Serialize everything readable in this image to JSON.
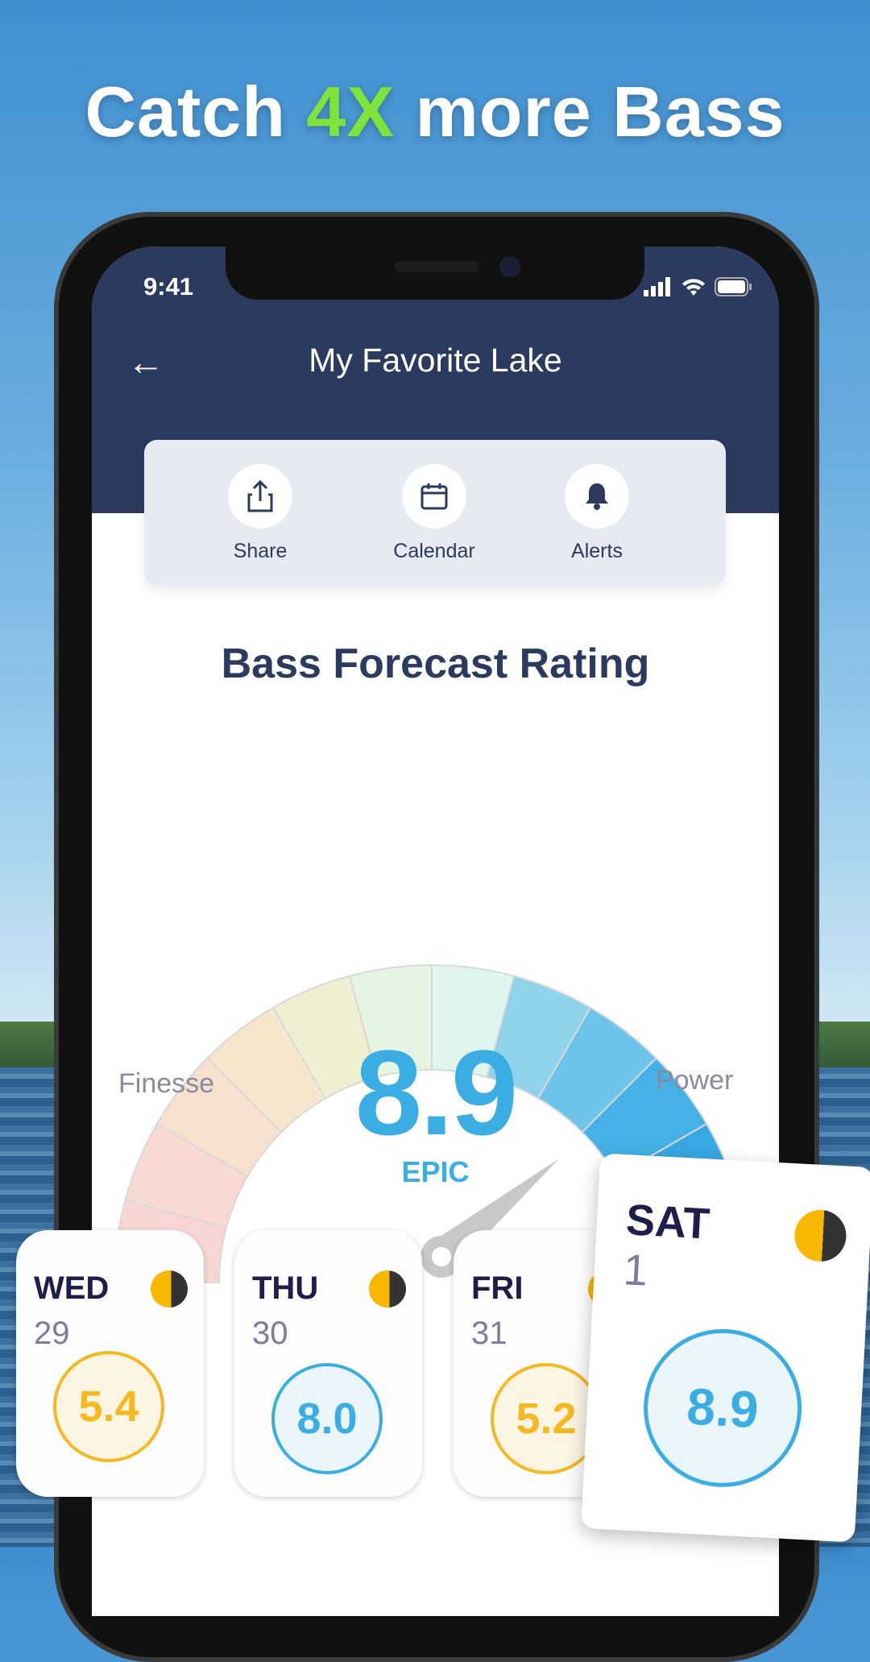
{
  "headline": {
    "pre": "Catch ",
    "accent": "4X",
    "post": " more Bass",
    "accent_color": "#7ee43a"
  },
  "status_bar": {
    "time": "9:41",
    "icons": [
      "signal-icon",
      "wifi-icon",
      "battery-icon"
    ]
  },
  "header": {
    "title": "My Favorite Lake",
    "back_icon": "arrow-left-icon"
  },
  "actions": [
    {
      "label": "Share",
      "icon": "share-icon"
    },
    {
      "label": "Calendar",
      "icon": "calendar-icon"
    },
    {
      "label": "Alerts",
      "icon": "bell-icon"
    }
  ],
  "forecast": {
    "title": "Bass Forecast Rating",
    "left_label": "Finesse",
    "right_label": "Power",
    "value": "8.9",
    "rating_label": "EPIC",
    "gauge_max": 10,
    "accent_color": "#3aaee3"
  },
  "days": [
    {
      "day": "WED",
      "date": "29",
      "score": "5.4",
      "color": "#f5b820"
    },
    {
      "day": "THU",
      "date": "30",
      "score": "8.0",
      "color": "#3aaee3"
    },
    {
      "day": "FRI",
      "date": "31",
      "score": "5.2",
      "color": "#f5b820"
    },
    {
      "day": "SAT",
      "date": "1",
      "score": "8.9",
      "color": "#3aaee3"
    }
  ]
}
